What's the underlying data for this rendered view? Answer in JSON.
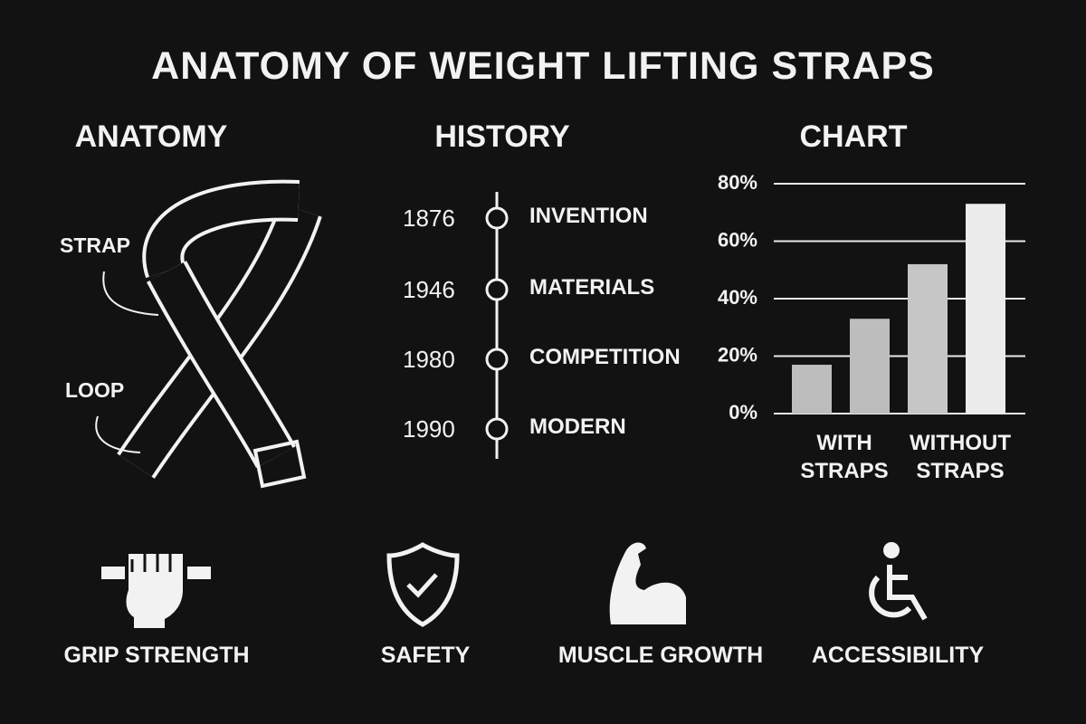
{
  "title": "ANATOMY OF WEIGHT LIFTING STRAPS",
  "anatomy": {
    "heading": "ANATOMY",
    "labels": [
      "STRAP",
      "LOOP"
    ]
  },
  "history": {
    "heading": "HISTORY",
    "events": [
      {
        "year": "1876",
        "label": "INVENTION"
      },
      {
        "year": "1946",
        "label": "MATERIALS"
      },
      {
        "year": "1980",
        "label": "COMPETITION"
      },
      {
        "year": "1990",
        "label": "MODERN"
      }
    ]
  },
  "chart_data": {
    "type": "bar",
    "title": "CHART",
    "categories": [
      "WITH STRAPS",
      null,
      "WITHOUT STRAPS",
      null
    ],
    "values": [
      17,
      33,
      52,
      73
    ],
    "colors": [
      "#bdbdbd",
      "#bdbdbd",
      "#c6c6c6",
      "#ececec"
    ],
    "ylim": [
      0,
      80
    ],
    "yticks": [
      {
        "value": 0,
        "label": "0%"
      },
      {
        "value": 20,
        "label": "20%"
      },
      {
        "value": 40,
        "label": "40%"
      },
      {
        "value": 60,
        "label": "60%"
      },
      {
        "value": 80,
        "label": "80%"
      }
    ],
    "grid": true
  },
  "features": [
    "GRIP STRENGTH",
    "SAFETY",
    "MUSCLE GROWTH",
    "ACCESSIBILITY"
  ]
}
